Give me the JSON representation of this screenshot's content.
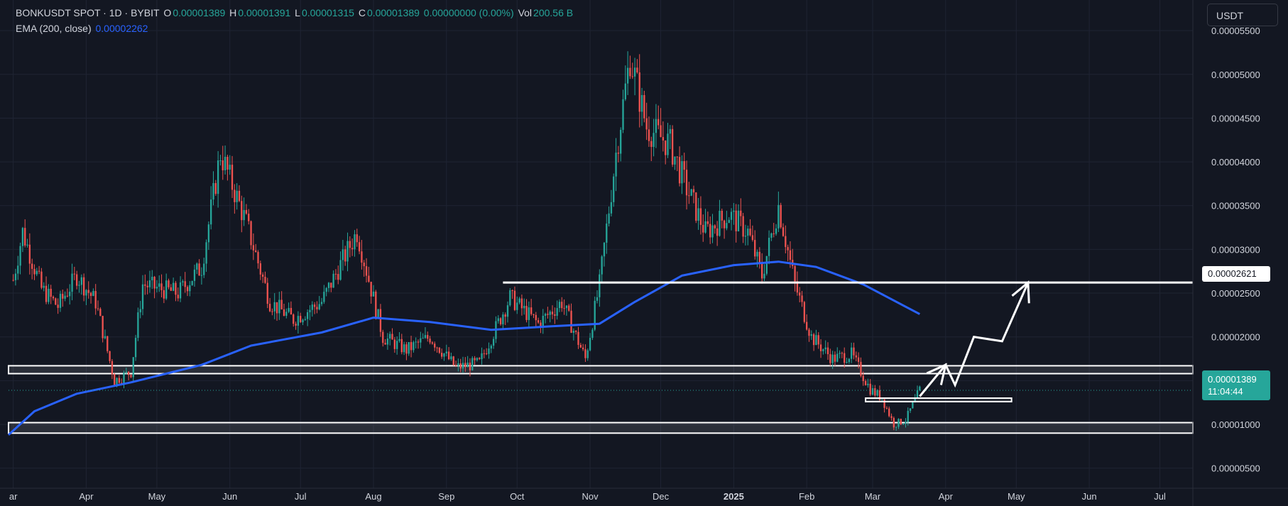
{
  "header": {
    "symbol": "BONKUSDT SPOT · 1D · BYBIT",
    "o_label": "O",
    "o_value": "0.00001389",
    "h_label": "H",
    "h_value": "0.00001391",
    "l_label": "L",
    "l_value": "0.00001315",
    "c_label": "C",
    "c_value": "0.00001389",
    "change": "0.00000000 (0.00%)",
    "vol_label": "Vol",
    "vol_value": "200.56 B",
    "ema_label": "EMA (200, close)",
    "ema_value": "0.00002262"
  },
  "currency_button": "USDT",
  "price_tags": {
    "resistance": "0.00002621",
    "last_price": "0.00001389",
    "countdown": "11:04:44"
  },
  "colors": {
    "background": "#131722",
    "up": "#26a69a",
    "down": "#ef5350",
    "ema": "#2962ff",
    "annotation": "#ffffff",
    "text": "#d1d4dc"
  },
  "chart_data": {
    "type": "candlestick",
    "symbol": "BONKUSDT",
    "interval": "1D",
    "exchange": "BYBIT",
    "x_ticks": [
      "ar",
      "Apr",
      "May",
      "Jun",
      "Jul",
      "Aug",
      "Sep",
      "Oct",
      "Nov",
      "Dec",
      "2025",
      "Feb",
      "Mar",
      "Apr",
      "May",
      "Jun",
      "Jul"
    ],
    "y_ticks": [
      "0.00000500",
      "0.00001000",
      "0.00001500",
      "0.00002000",
      "0.00002500",
      "0.00003000",
      "0.00003500",
      "0.00004000",
      "0.00004500",
      "0.00005000",
      "0.00005500"
    ],
    "ylim": [
      2.7e-06,
      5.85e-05
    ],
    "xlim": [
      "2024-02-28",
      "2025-07-15"
    ],
    "grid": true,
    "price_path_anchors": [
      {
        "date": "2024-03-01",
        "close": 2.65e-05
      },
      {
        "date": "2024-03-05",
        "close": 3.2e-05
      },
      {
        "date": "2024-03-13",
        "close": 2.55e-05
      },
      {
        "date": "2024-03-20",
        "close": 2.35e-05
      },
      {
        "date": "2024-03-28",
        "close": 2.7e-05
      },
      {
        "date": "2024-04-05",
        "close": 2.4e-05
      },
      {
        "date": "2024-04-13",
        "close": 1.5e-05
      },
      {
        "date": "2024-04-20",
        "close": 1.6e-05
      },
      {
        "date": "2024-04-25",
        "close": 2.6e-05
      },
      {
        "date": "2024-05-10",
        "close": 2.5e-05
      },
      {
        "date": "2024-05-20",
        "close": 2.8e-05
      },
      {
        "date": "2024-05-28",
        "close": 4.1e-05
      },
      {
        "date": "2024-06-08",
        "close": 3.3e-05
      },
      {
        "date": "2024-06-18",
        "close": 2.4e-05
      },
      {
        "date": "2024-06-28",
        "close": 2.2e-05
      },
      {
        "date": "2024-07-10",
        "close": 2.4e-05
      },
      {
        "date": "2024-07-25",
        "close": 3.2e-05
      },
      {
        "date": "2024-08-05",
        "close": 2e-05
      },
      {
        "date": "2024-08-15",
        "close": 1.85e-05
      },
      {
        "date": "2024-08-25",
        "close": 2e-05
      },
      {
        "date": "2024-09-05",
        "close": 1.65e-05
      },
      {
        "date": "2024-09-15",
        "close": 1.7e-05
      },
      {
        "date": "2024-09-28",
        "close": 2.45e-05
      },
      {
        "date": "2024-10-10",
        "close": 2.15e-05
      },
      {
        "date": "2024-10-20",
        "close": 2.4e-05
      },
      {
        "date": "2024-10-30",
        "close": 1.75e-05
      },
      {
        "date": "2024-11-05",
        "close": 2.6e-05
      },
      {
        "date": "2024-11-12",
        "close": 4.1e-05
      },
      {
        "date": "2024-11-18",
        "close": 5.2e-05
      },
      {
        "date": "2024-11-25",
        "close": 4.4e-05
      },
      {
        "date": "2024-12-05",
        "close": 4.2e-05
      },
      {
        "date": "2024-12-12",
        "close": 3.7e-05
      },
      {
        "date": "2024-12-20",
        "close": 3.2e-05
      },
      {
        "date": "2024-12-30",
        "close": 3.4e-05
      },
      {
        "date": "2025-01-07",
        "close": 3.2e-05
      },
      {
        "date": "2025-01-13",
        "close": 2.7e-05
      },
      {
        "date": "2025-01-20",
        "close": 3.5e-05
      },
      {
        "date": "2025-01-27",
        "close": 2.6e-05
      },
      {
        "date": "2025-02-03",
        "close": 2e-05
      },
      {
        "date": "2025-02-12",
        "close": 1.75e-05
      },
      {
        "date": "2025-02-20",
        "close": 1.8e-05
      },
      {
        "date": "2025-02-28",
        "close": 1.4e-05
      },
      {
        "date": "2025-03-05",
        "close": 1.3e-05
      },
      {
        "date": "2025-03-10",
        "close": 1e-05
      },
      {
        "date": "2025-03-15",
        "close": 1.05e-05
      },
      {
        "date": "2025-03-21",
        "close": 1.39e-05
      }
    ],
    "ema200": {
      "name": "EMA (200, close)",
      "points": [
        {
          "date": "2024-02-28",
          "value": 8.8e-06
        },
        {
          "date": "2024-03-10",
          "value": 1.15e-05
        },
        {
          "date": "2024-03-28",
          "value": 1.35e-05
        },
        {
          "date": "2024-04-20",
          "value": 1.48e-05
        },
        {
          "date": "2024-05-20",
          "value": 1.68e-05
        },
        {
          "date": "2024-06-10",
          "value": 1.9e-05
        },
        {
          "date": "2024-07-10",
          "value": 2.05e-05
        },
        {
          "date": "2024-08-01",
          "value": 2.22e-05
        },
        {
          "date": "2024-08-25",
          "value": 2.17e-05
        },
        {
          "date": "2024-09-20",
          "value": 2.08e-05
        },
        {
          "date": "2024-10-15",
          "value": 2.12e-05
        },
        {
          "date": "2024-11-05",
          "value": 2.15e-05
        },
        {
          "date": "2024-11-20",
          "value": 2.4e-05
        },
        {
          "date": "2024-12-10",
          "value": 2.7e-05
        },
        {
          "date": "2025-01-01",
          "value": 2.82e-05
        },
        {
          "date": "2025-01-20",
          "value": 2.86e-05
        },
        {
          "date": "2025-02-05",
          "value": 2.8e-05
        },
        {
          "date": "2025-02-25",
          "value": 2.6e-05
        },
        {
          "date": "2025-03-21",
          "value": 2.26e-05
        }
      ]
    },
    "annotations": {
      "resistance_line": {
        "from": "2024-09-25",
        "to": "2025-07-15",
        "price": 2.621e-05
      },
      "support_band_upper": {
        "from": "2024-02-28",
        "to": "2025-07-15",
        "low": 1.58e-05,
        "high": 1.67e-05
      },
      "support_band_lower": {
        "from": "2024-02-28",
        "to": "2025-07-15",
        "low": 9e-06,
        "high": 1.02e-05
      },
      "small_zone": {
        "from": "2025-02-26",
        "to": "2025-04-29",
        "low": 1.26e-05,
        "high": 1.3e-05
      },
      "projection_path": [
        {
          "date": "2025-03-21",
          "price": 1.32e-05
        },
        {
          "date": "2025-04-01",
          "price": 1.68e-05
        },
        {
          "date": "2025-04-05",
          "price": 1.45e-05
        },
        {
          "date": "2025-04-13",
          "price": 2e-05
        },
        {
          "date": "2025-04-25",
          "price": 1.95e-05
        },
        {
          "date": "2025-05-06",
          "price": 2.62e-05
        }
      ]
    },
    "last_price": 1.389e-05
  }
}
